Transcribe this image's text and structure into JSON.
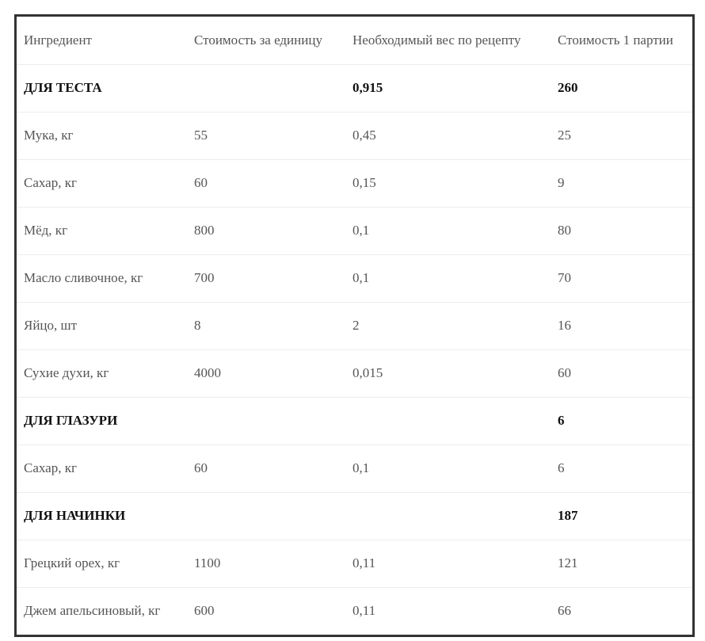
{
  "table": {
    "header": [
      "Ингредиент",
      "Стоимость за единицу",
      "Необходимый вес по рецепту",
      "Стоимость 1 партии"
    ],
    "rows": [
      {
        "section": true,
        "cells": [
          "ДЛЯ ТЕСТА",
          null,
          "0,915",
          "260"
        ]
      },
      {
        "section": false,
        "cells": [
          "Мука, кг",
          "55",
          "0,45",
          "25"
        ]
      },
      {
        "section": false,
        "cells": [
          "Сахар, кг",
          "60",
          "0,15",
          "9"
        ]
      },
      {
        "section": false,
        "cells": [
          "Мёд, кг",
          "800",
          "0,1",
          "80"
        ]
      },
      {
        "section": false,
        "cells": [
          "Масло сливочное, кг",
          "700",
          "0,1",
          "70"
        ]
      },
      {
        "section": false,
        "cells": [
          "Яйцо, шт",
          "8",
          "2",
          "16"
        ]
      },
      {
        "section": false,
        "cells": [
          "Сухие духи, кг",
          "4000",
          "0,015",
          "60"
        ]
      },
      {
        "section": true,
        "cells": [
          "ДЛЯ ГЛАЗУРИ",
          null,
          null,
          "6"
        ]
      },
      {
        "section": false,
        "cells": [
          "Сахар, кг",
          "60",
          "0,1",
          "6"
        ]
      },
      {
        "section": true,
        "cells": [
          "ДЛЯ НАЧИНКИ",
          null,
          null,
          "187"
        ]
      },
      {
        "section": false,
        "cells": [
          "Грецкий орех, кг",
          "1100",
          "0,11",
          "121"
        ]
      },
      {
        "section": false,
        "cells": [
          "Джем апельсиновый, кг",
          "600",
          "0,11",
          "66"
        ]
      }
    ]
  }
}
